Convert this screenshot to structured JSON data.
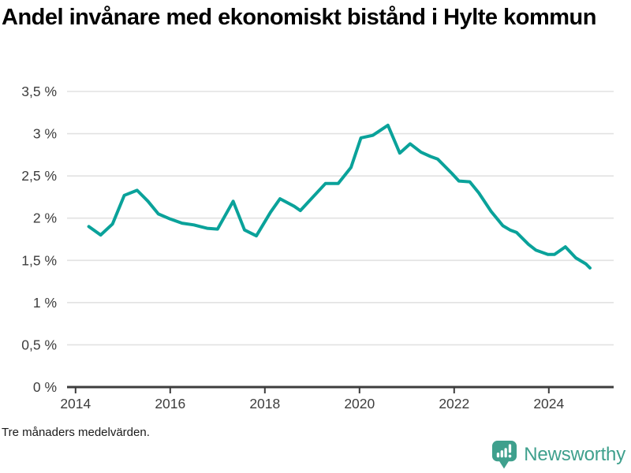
{
  "header": {
    "title": "Andel invånare med ekonomiskt bistånd i Hylte kommun"
  },
  "footer": {
    "note": "Tre månaders medelvärden.",
    "brand_name": "Newsworthy",
    "brand_icon": "bar-chart-speech-bubble-icon"
  },
  "colors": {
    "line": "#0aa29a",
    "brand_teal": "#3fa08d",
    "grid": "#e2e2e2",
    "axis": "#3d3d3d",
    "tick_label": "#3d3d3d",
    "title_text": "#000000",
    "background": "#ffffff"
  },
  "chart_data": {
    "type": "line",
    "title": "Andel invånare med ekonomiskt bistånd i Hylte kommun",
    "subtitle_note": "Tre månaders medelvärden.",
    "series": [
      {
        "name": "Andel invånare med ekonomiskt bistånd",
        "x": [
          2014.28,
          2014.53,
          2014.78,
          2015.03,
          2015.3,
          2015.53,
          2015.75,
          2016.0,
          2016.25,
          2016.5,
          2016.78,
          2017.0,
          2017.33,
          2017.57,
          2017.82,
          2018.12,
          2018.32,
          2018.62,
          2018.75,
          2019.28,
          2019.55,
          2019.82,
          2020.03,
          2020.28,
          2020.6,
          2020.85,
          2021.07,
          2021.3,
          2021.5,
          2021.65,
          2021.95,
          2022.1,
          2022.33,
          2022.52,
          2022.78,
          2023.03,
          2023.18,
          2023.32,
          2023.57,
          2023.73,
          2023.98,
          2024.12,
          2024.35,
          2024.57,
          2024.78,
          2024.87
        ],
        "values": [
          1.9,
          1.8,
          1.93,
          2.27,
          2.33,
          2.2,
          2.05,
          1.99,
          1.94,
          1.92,
          1.88,
          1.87,
          2.2,
          1.86,
          1.79,
          2.07,
          2.23,
          2.14,
          2.09,
          2.41,
          2.41,
          2.6,
          2.95,
          2.98,
          3.1,
          2.77,
          2.88,
          2.78,
          2.73,
          2.7,
          2.53,
          2.44,
          2.43,
          2.3,
          2.08,
          1.91,
          1.86,
          1.83,
          1.69,
          1.62,
          1.57,
          1.57,
          1.66,
          1.53,
          1.46,
          1.41
        ]
      }
    ],
    "xlabel": "",
    "ylabel": "",
    "x_ticks": [
      {
        "value": 2014,
        "label": "2014"
      },
      {
        "value": 2016,
        "label": "2016"
      },
      {
        "value": 2018,
        "label": "2018"
      },
      {
        "value": 2020,
        "label": "2020"
      },
      {
        "value": 2022,
        "label": "2022"
      },
      {
        "value": 2024,
        "label": "2024"
      }
    ],
    "y_ticks": [
      {
        "value": 0,
        "label": "0 %"
      },
      {
        "value": 0.5,
        "label": "0,5 %"
      },
      {
        "value": 1,
        "label": "1 %"
      },
      {
        "value": 1.5,
        "label": "1,5 %"
      },
      {
        "value": 2,
        "label": "2 %"
      },
      {
        "value": 2.5,
        "label": "2,5 %"
      },
      {
        "value": 3,
        "label": "3 %"
      },
      {
        "value": 3.5,
        "label": "3,5 %"
      }
    ],
    "xlim": [
      2013.82,
      2025.37
    ],
    "ylim": [
      0,
      3.5
    ],
    "grid": "horizontal",
    "legend": "none",
    "line_color": "#0aa29a"
  }
}
